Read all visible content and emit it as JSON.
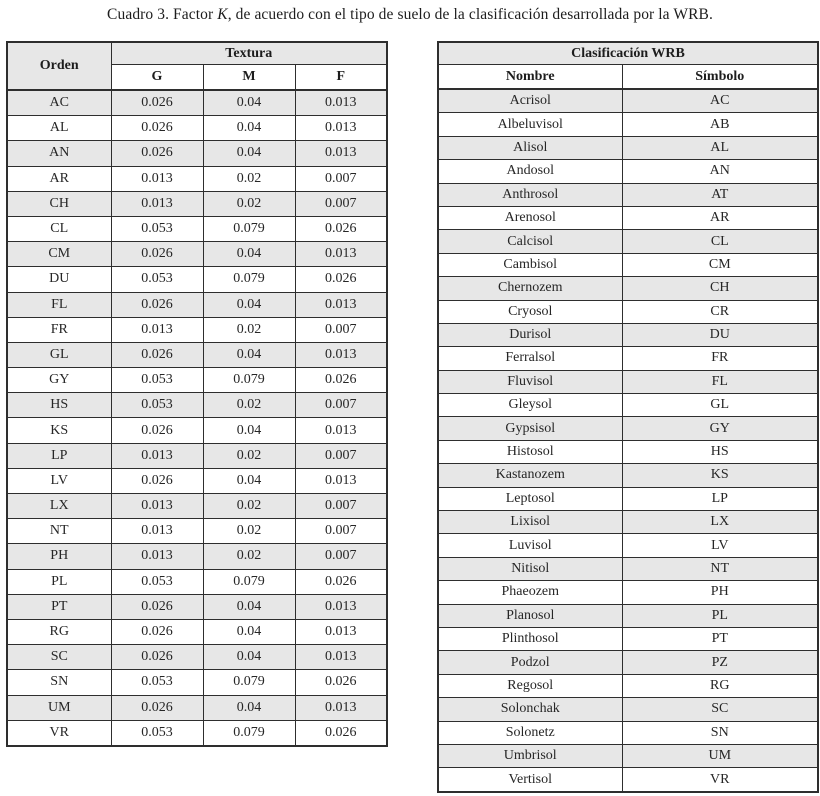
{
  "page": {
    "title_part1": "Cuadro 3. Factor ",
    "title_italic": "K",
    "title_part2": ", de acuerdo con el tipo de suelo de la clasificación desarrollada por la WRB."
  },
  "colors": {
    "row_shade": "#e7e7e7",
    "border": "#2e2e2e",
    "text": "#222222"
  },
  "left_table": {
    "header": {
      "orden": "Orden",
      "textura": "Textura",
      "cols": [
        "G",
        "M",
        "F"
      ]
    },
    "rows": [
      {
        "orden": "AC",
        "g": "0.026",
        "m": "0.04",
        "f": "0.013"
      },
      {
        "orden": "AL",
        "g": "0.026",
        "m": "0.04",
        "f": "0.013"
      },
      {
        "orden": "AN",
        "g": "0.026",
        "m": "0.04",
        "f": "0.013"
      },
      {
        "orden": "AR",
        "g": "0.013",
        "m": "0.02",
        "f": "0.007"
      },
      {
        "orden": "CH",
        "g": "0.013",
        "m": "0.02",
        "f": "0.007"
      },
      {
        "orden": "CL",
        "g": "0.053",
        "m": "0.079",
        "f": "0.026"
      },
      {
        "orden": "CM",
        "g": "0.026",
        "m": "0.04",
        "f": "0.013"
      },
      {
        "orden": "DU",
        "g": "0.053",
        "m": "0.079",
        "f": "0.026"
      },
      {
        "orden": "FL",
        "g": "0.026",
        "m": "0.04",
        "f": "0.013"
      },
      {
        "orden": "FR",
        "g": "0.013",
        "m": "0.02",
        "f": "0.007"
      },
      {
        "orden": "GL",
        "g": "0.026",
        "m": "0.04",
        "f": "0.013"
      },
      {
        "orden": "GY",
        "g": "0.053",
        "m": "0.079",
        "f": "0.026"
      },
      {
        "orden": "HS",
        "g": "0.053",
        "m": "0.02",
        "f": "0.007"
      },
      {
        "orden": "KS",
        "g": "0.026",
        "m": "0.04",
        "f": "0.013"
      },
      {
        "orden": "LP",
        "g": "0.013",
        "m": "0.02",
        "f": "0.007"
      },
      {
        "orden": "LV",
        "g": "0.026",
        "m": "0.04",
        "f": "0.013"
      },
      {
        "orden": "LX",
        "g": "0.013",
        "m": "0.02",
        "f": "0.007"
      },
      {
        "orden": "NT",
        "g": "0.013",
        "m": "0.02",
        "f": "0.007"
      },
      {
        "orden": "PH",
        "g": "0.013",
        "m": "0.02",
        "f": "0.007"
      },
      {
        "orden": "PL",
        "g": "0.053",
        "m": "0.079",
        "f": "0.026"
      },
      {
        "orden": "PT",
        "g": "0.026",
        "m": "0.04",
        "f": "0.013"
      },
      {
        "orden": "RG",
        "g": "0.026",
        "m": "0.04",
        "f": "0.013"
      },
      {
        "orden": "SC",
        "g": "0.026",
        "m": "0.04",
        "f": "0.013"
      },
      {
        "orden": "SN",
        "g": "0.053",
        "m": "0.079",
        "f": "0.026"
      },
      {
        "orden": "UM",
        "g": "0.026",
        "m": "0.04",
        "f": "0.013"
      },
      {
        "orden": "VR",
        "g": "0.053",
        "m": "0.079",
        "f": "0.026"
      }
    ]
  },
  "right_table": {
    "header": {
      "title": "Clasificación WRB",
      "nombre": "Nombre",
      "simbolo": "Símbolo"
    },
    "rows": [
      {
        "nombre": "Acrisol",
        "simbolo": "AC"
      },
      {
        "nombre": "Albeluvisol",
        "simbolo": "AB"
      },
      {
        "nombre": "Alisol",
        "simbolo": "AL"
      },
      {
        "nombre": "Andosol",
        "simbolo": "AN"
      },
      {
        "nombre": "Anthrosol",
        "simbolo": "AT"
      },
      {
        "nombre": "Arenosol",
        "simbolo": "AR"
      },
      {
        "nombre": "Calcisol",
        "simbolo": "CL"
      },
      {
        "nombre": "Cambisol",
        "simbolo": "CM"
      },
      {
        "nombre": "Chernozem",
        "simbolo": "CH"
      },
      {
        "nombre": "Cryosol",
        "simbolo": "CR"
      },
      {
        "nombre": "Durisol",
        "simbolo": "DU"
      },
      {
        "nombre": "Ferralsol",
        "simbolo": "FR"
      },
      {
        "nombre": "Fluvisol",
        "simbolo": "FL"
      },
      {
        "nombre": "Gleysol",
        "simbolo": "GL"
      },
      {
        "nombre": "Gypsisol",
        "simbolo": "GY"
      },
      {
        "nombre": "Histosol",
        "simbolo": "HS"
      },
      {
        "nombre": "Kastanozem",
        "simbolo": "KS"
      },
      {
        "nombre": "Leptosol",
        "simbolo": "LP"
      },
      {
        "nombre": "Lixisol",
        "simbolo": "LX"
      },
      {
        "nombre": "Luvisol",
        "simbolo": "LV"
      },
      {
        "nombre": "Nitisol",
        "simbolo": "NT"
      },
      {
        "nombre": "Phaeozem",
        "simbolo": "PH"
      },
      {
        "nombre": "Planosol",
        "simbolo": "PL"
      },
      {
        "nombre": "Plinthosol",
        "simbolo": "PT"
      },
      {
        "nombre": "Podzol",
        "simbolo": "PZ"
      },
      {
        "nombre": "Regosol",
        "simbolo": "RG"
      },
      {
        "nombre": "Solonchak",
        "simbolo": "SC"
      },
      {
        "nombre": "Solonetz",
        "simbolo": "SN"
      },
      {
        "nombre": "Umbrisol",
        "simbolo": "UM"
      },
      {
        "nombre": "Vertisol",
        "simbolo": "VR"
      }
    ]
  }
}
